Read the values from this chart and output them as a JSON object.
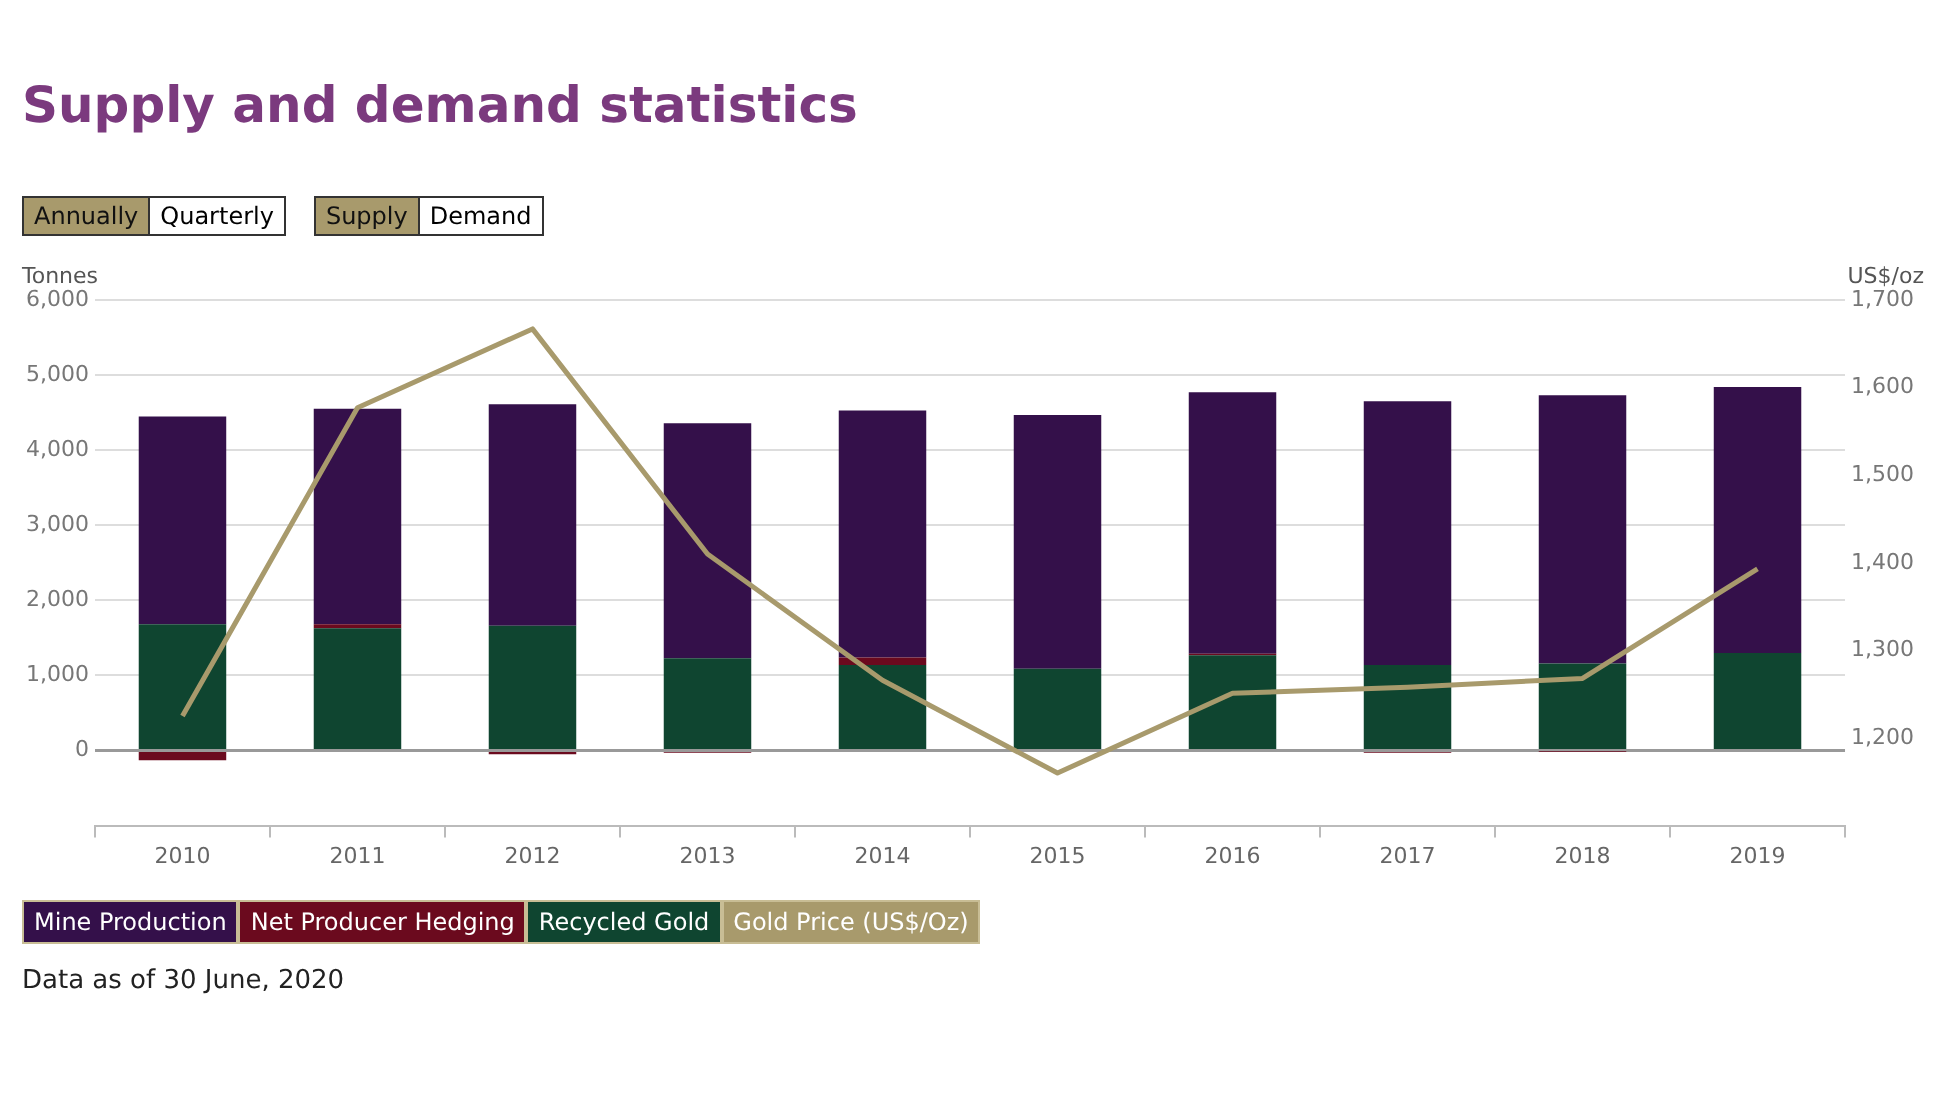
{
  "chart_data": {
    "type": "bar",
    "title": "Supply and demand statistics",
    "stacked": true,
    "categories": [
      "2010",
      "2011",
      "2012",
      "2013",
      "2014",
      "2015",
      "2016",
      "2017",
      "2018",
      "2019"
    ],
    "series": [
      {
        "name": "Recycled Gold",
        "color": "#0f4530",
        "values": [
          1680,
          1630,
          1660,
          1230,
          1140,
          1090,
          1270,
          1140,
          1160,
          1300
        ]
      },
      {
        "name": "Net Producer Hedging",
        "color": "#6b0a1e",
        "values": [
          -130,
          50,
          -50,
          -30,
          100,
          0,
          20,
          -30,
          -10,
          0
        ]
      },
      {
        "name": "Mine Production",
        "color": "#34104a",
        "values": [
          2770,
          2870,
          2950,
          3130,
          3290,
          3380,
          3480,
          3510,
          3570,
          3540
        ]
      },
      {
        "name": "Gold Price (US$/Oz)",
        "type": "line",
        "axis": "y2",
        "color": "#a89a6c",
        "values": [
          1225,
          1577,
          1667,
          1410,
          1266,
          1160,
          1251,
          1258,
          1268,
          1393
        ]
      }
    ],
    "ylabel": "Tonnes",
    "y2label": "US$/oz",
    "ylim": [
      -1000,
      6000
    ],
    "yticks": [
      0,
      {
        "value": 1000,
        "label": "1,000"
      },
      {
        "value": 2000,
        "label": "2,000"
      },
      {
        "value": 3000,
        "label": "3,000"
      },
      {
        "value": 4000,
        "label": "4,000"
      },
      {
        "value": 5000,
        "label": "5,000"
      },
      {
        "value": 6000,
        "label": "6,000"
      }
    ],
    "y2lim": [
      1100,
      1700
    ],
    "y2ticks": [
      {
        "value": 1200,
        "label": "1,200"
      },
      {
        "value": 1300,
        "label": "1,300"
      },
      {
        "value": 1400,
        "label": "1,400"
      },
      {
        "value": 1500,
        "label": "1,500"
      },
      {
        "value": 1600,
        "label": "1,600"
      },
      {
        "value": 1700,
        "label": "1,700"
      }
    ],
    "grid": "y",
    "legend": "bottom left",
    "marker": "none",
    "annotations": [
      "Annually",
      "Quarterly",
      "Supply",
      "Demand",
      "Data as of 30 June, 2020"
    ]
  }
}
